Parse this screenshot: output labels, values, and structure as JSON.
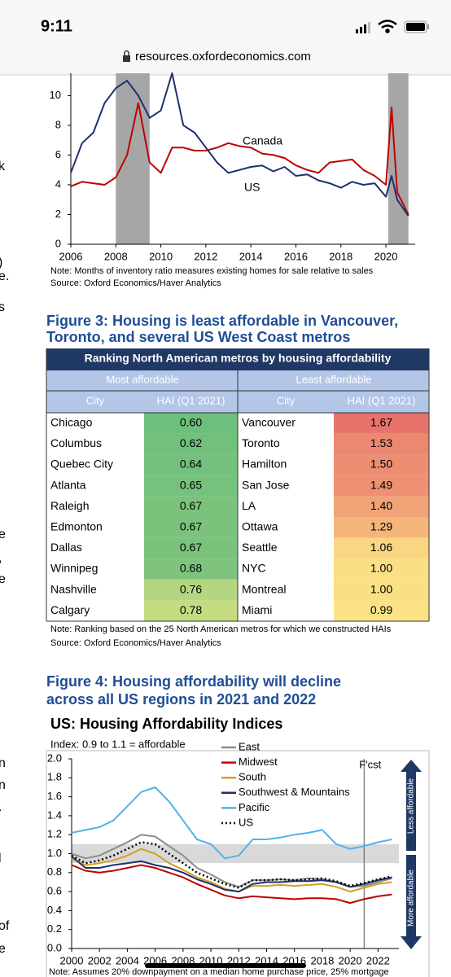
{
  "status_bar": {
    "time": "9:11"
  },
  "url": "resources.oxfordeconomics.com",
  "margin_fragments": [
    "k",
    ")",
    "e.",
    "s",
    "e",
    ",",
    "e",
    "n",
    "n",
    ".",
    "l",
    "of",
    "e"
  ],
  "figure3": {
    "heading": [
      "Figure 3: Housing is least affordable in Vancouver,",
      "Toronto, and several US West Coast metros"
    ]
  },
  "table": {
    "title": "Ranking North American metros by housing affordability",
    "groups": [
      "Most affordable",
      "Least affordable"
    ],
    "headers": [
      "City",
      "HAI (Q1 2021)",
      "City",
      "HAI (Q1 2021)"
    ],
    "rows": [
      [
        "Chicago",
        "0.60",
        "Vancouver",
        "1.67"
      ],
      [
        "Columbus",
        "0.62",
        "Toronto",
        "1.53"
      ],
      [
        "Quebec City",
        "0.64",
        "Hamilton",
        "1.50"
      ],
      [
        "Atlanta",
        "0.65",
        "San Jose",
        "1.49"
      ],
      [
        "Raleigh",
        "0.67",
        "LA",
        "1.40"
      ],
      [
        "Edmonton",
        "0.67",
        "Ottawa",
        "1.29"
      ],
      [
        "Dallas",
        "0.67",
        "Seattle",
        "1.06"
      ],
      [
        "Winnipeg",
        "0.68",
        "NYC",
        "1.00"
      ],
      [
        "Nashville",
        "0.76",
        "Montreal",
        "1.00"
      ],
      [
        "Calgary",
        "0.78",
        "Miami",
        "0.99"
      ]
    ],
    "cell_colors": [
      [
        "#6dbf7c",
        "#e8736d"
      ],
      [
        "#71c07c",
        "#ec8871"
      ],
      [
        "#74c17d",
        "#ed8d72"
      ],
      [
        "#76c27d",
        "#ee9073"
      ],
      [
        "#7bc37d",
        "#f1a377"
      ],
      [
        "#7bc37d",
        "#f4b57b"
      ],
      [
        "#7bc37d",
        "#fad683"
      ],
      [
        "#7ec47e",
        "#fbdf85"
      ],
      [
        "#b4d680",
        "#fbdf85"
      ],
      [
        "#c3db81",
        "#fbe285"
      ]
    ],
    "note": "Note: Ranking based on the 25 North American metros for which we constructed HAIs",
    "source": "Source: Oxford Economics/Haver Analytics"
  },
  "figure4": {
    "heading": [
      "Figure 4: Housing affordability will decline",
      "across all US regions in 2021 and 2022"
    ]
  },
  "chart_data": [
    {
      "type": "line",
      "x": [
        2006,
        2006.5,
        2007,
        2007.5,
        2008,
        2008.5,
        2009,
        2009.5,
        2010,
        2010.5,
        2011,
        2011.5,
        2012,
        2012.5,
        2013,
        2013.5,
        2014,
        2014.5,
        2015,
        2015.5,
        2016,
        2016.5,
        2017,
        2017.5,
        2018,
        2018.5,
        2019,
        2019.5,
        2020,
        2020.25,
        2020.5,
        2021
      ],
      "series": [
        {
          "name": "Canada",
          "color": "#c00000",
          "values": [
            3.9,
            4.2,
            4.1,
            4.0,
            4.5,
            6.0,
            9.5,
            5.5,
            4.8,
            6.5,
            6.5,
            6.3,
            6.3,
            6.5,
            6.8,
            6.6,
            6.5,
            6.1,
            6.0,
            5.8,
            5.3,
            5.0,
            4.8,
            5.5,
            5.6,
            5.7,
            5.0,
            4.6,
            4.0,
            9.2,
            3.5,
            2.0
          ]
        },
        {
          "name": "US",
          "color": "#1f2f6e",
          "values": [
            4.8,
            6.8,
            7.5,
            9.5,
            10.5,
            11.0,
            10.0,
            8.5,
            9.0,
            11.5,
            8.0,
            7.5,
            6.5,
            5.5,
            4.8,
            5.0,
            5.2,
            5.3,
            4.9,
            5.2,
            4.6,
            4.7,
            4.3,
            4.1,
            3.8,
            4.2,
            4.0,
            4.1,
            3.2,
            4.6,
            3.0,
            1.9
          ]
        }
      ],
      "shaded_periods": [
        [
          2008,
          2009.5
        ],
        [
          2020.1,
          2021
        ]
      ],
      "xlim": [
        2006,
        2021.3
      ],
      "xticks": [
        2006,
        2008,
        2010,
        2012,
        2014,
        2016,
        2018,
        2020
      ],
      "ylim": [
        0,
        11.5
      ],
      "yticks": [
        0,
        2,
        4,
        6,
        8,
        10
      ],
      "note": "Note: Months of inventory ratio measures existing homes for sale relative to sales",
      "source": "Source: Oxford Economics/Haver Analytics"
    },
    {
      "type": "line",
      "title": "US: Housing Affordability Indices",
      "subtitle": "Index: 0.9 to 1.1 = affordable",
      "x": [
        2000,
        2001,
        2002,
        2003,
        2004,
        2005,
        2006,
        2007,
        2008,
        2009,
        2010,
        2011,
        2012,
        2013,
        2014,
        2015,
        2016,
        2017,
        2018,
        2019,
        2020,
        2021,
        2022,
        2023
      ],
      "series": [
        {
          "name": "East",
          "color": "#8c8c8c",
          "values": [
            1.0,
            0.95,
            0.98,
            1.05,
            1.12,
            1.2,
            1.18,
            1.08,
            0.98,
            0.85,
            0.78,
            0.7,
            0.65,
            0.72,
            0.72,
            0.73,
            0.72,
            0.74,
            0.73,
            0.7,
            0.65,
            0.66,
            0.7,
            0.74
          ]
        },
        {
          "name": "Midwest",
          "color": "#c00000",
          "values": [
            0.88,
            0.82,
            0.8,
            0.82,
            0.85,
            0.88,
            0.85,
            0.8,
            0.75,
            0.68,
            0.62,
            0.56,
            0.53,
            0.55,
            0.54,
            0.53,
            0.52,
            0.53,
            0.53,
            0.52,
            0.48,
            0.52,
            0.55,
            0.57
          ]
        },
        {
          "name": "South",
          "color": "#d4a020",
          "values": [
            0.95,
            0.88,
            0.9,
            0.93,
            0.98,
            1.05,
            1.0,
            0.9,
            0.83,
            0.75,
            0.7,
            0.63,
            0.6,
            0.66,
            0.66,
            0.67,
            0.66,
            0.67,
            0.68,
            0.65,
            0.6,
            0.64,
            0.68,
            0.7
          ]
        },
        {
          "name": "Southwest & Mountains",
          "color": "#1f2f6e",
          "values": [
            0.97,
            0.85,
            0.85,
            0.88,
            0.9,
            0.92,
            0.88,
            0.85,
            0.8,
            0.73,
            0.68,
            0.62,
            0.6,
            0.68,
            0.7,
            0.7,
            0.71,
            0.71,
            0.72,
            0.7,
            0.65,
            0.68,
            0.72,
            0.75
          ]
        },
        {
          "name": "Pacific",
          "color": "#4fb3e8",
          "values": [
            1.22,
            1.25,
            1.28,
            1.35,
            1.5,
            1.65,
            1.7,
            1.55,
            1.35,
            1.15,
            1.1,
            0.95,
            0.98,
            1.15,
            1.15,
            1.17,
            1.2,
            1.22,
            1.25,
            1.1,
            1.05,
            1.08,
            1.12,
            1.15
          ]
        },
        {
          "name": "US",
          "color": "#000000",
          "dotted": true,
          "values": [
            0.98,
            0.9,
            0.93,
            0.98,
            1.05,
            1.12,
            1.1,
            1.0,
            0.9,
            0.8,
            0.74,
            0.68,
            0.64,
            0.72,
            0.72,
            0.73,
            0.72,
            0.73,
            0.74,
            0.71,
            0.66,
            0.69,
            0.73,
            0.76
          ]
        }
      ],
      "affordable_band": [
        0.9,
        1.1
      ],
      "forecast_start": 2021,
      "forecast_label": "F'cst",
      "arrow_labels": [
        "Less affordable",
        "More affordable"
      ],
      "xlim": [
        2000,
        2023.5
      ],
      "xticks": [
        2000,
        2002,
        2004,
        2006,
        2008,
        2010,
        2012,
        2014,
        2016,
        2018,
        2020,
        2022
      ],
      "ylim": [
        0,
        2
      ],
      "yticks": [
        {
          "value": 0,
          "label": "0.0"
        },
        0.2,
        0.4,
        0.6,
        0.8,
        {
          "value": 1,
          "label": "1.0"
        },
        1.2,
        1.4,
        1.6,
        1.8,
        {
          "value": 2,
          "label": "2.0"
        }
      ],
      "note": "Note: Assumes 20% downpayment on a median home purchase price, 25% mortgage"
    }
  ]
}
